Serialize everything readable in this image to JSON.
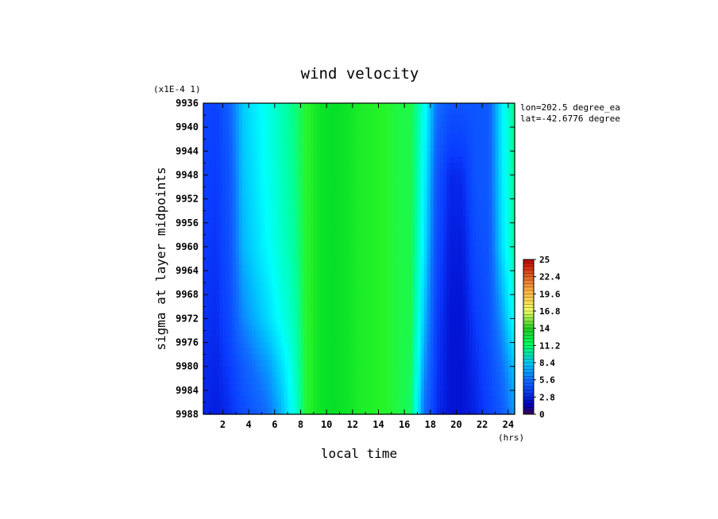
{
  "chart_data": {
    "type": "heatmap",
    "title": "wind velocity",
    "xlabel": "local time",
    "ylabel": "sigma at layer midpoints",
    "y_scale_note": "(x1E-4 1)",
    "x_unit": "(hrs)",
    "annotations": [
      "lon=202.5 degree_ea",
      "lat=-42.6776 degree"
    ],
    "x_ticks": [
      "2",
      "4",
      "6",
      "8",
      "10",
      "12",
      "14",
      "16",
      "18",
      "20",
      "22",
      "24"
    ],
    "y_ticks": [
      "9936",
      "9940",
      "9944",
      "9948",
      "9952",
      "9956",
      "9960",
      "9964",
      "9968",
      "9972",
      "9976",
      "9980",
      "9984",
      "9988"
    ],
    "xlim": [
      0.5,
      24.5
    ],
    "ylim": [
      9936,
      9988
    ],
    "colorbar": {
      "ticks": [
        "25",
        "22.4",
        "19.6",
        "16.8",
        "14",
        "11.2",
        "8.4",
        "5.6",
        "2.8",
        "0"
      ],
      "min": 0,
      "max": 25
    },
    "x": [
      0.5,
      1.5,
      2.5,
      3.5,
      4.5,
      5.5,
      6.5,
      7.5,
      8.5,
      9.5,
      10.5,
      11.5,
      12.5,
      13.5,
      14.5,
      15.5,
      16.5,
      17.5,
      18.5,
      19.5,
      20.5,
      21.5,
      22.5,
      23.5,
      24.5
    ],
    "y": [
      9936,
      9948,
      9960,
      9972,
      9980,
      9988
    ],
    "values": [
      [
        3.5,
        3.2,
        4.5,
        7.0,
        8.0,
        9.0,
        10.0,
        11.0,
        12.5,
        13.5,
        13.8,
        13.5,
        13.0,
        12.8,
        12.5,
        12.0,
        12.0,
        9.0,
        5.0,
        4.0,
        4.0,
        4.0,
        4.2,
        8.0,
        11.0
      ],
      [
        3.2,
        3.0,
        4.0,
        6.8,
        7.8,
        8.8,
        9.8,
        10.8,
        12.5,
        13.5,
        13.8,
        13.5,
        13.0,
        12.8,
        12.5,
        12.0,
        12.0,
        8.5,
        4.0,
        2.5,
        2.6,
        4.0,
        4.2,
        7.8,
        10.8
      ],
      [
        3.0,
        2.8,
        3.8,
        6.5,
        7.5,
        8.5,
        9.5,
        10.5,
        12.5,
        13.5,
        13.8,
        13.5,
        13.0,
        12.8,
        12.5,
        12.0,
        12.0,
        8.0,
        3.5,
        2.2,
        2.2,
        3.6,
        4.0,
        7.5,
        10.5
      ],
      [
        2.8,
        2.6,
        3.5,
        5.5,
        6.5,
        7.5,
        8.8,
        10.0,
        12.5,
        13.5,
        13.8,
        13.5,
        13.0,
        12.8,
        12.5,
        12.0,
        12.0,
        7.0,
        3.0,
        2.0,
        2.0,
        3.0,
        3.8,
        6.0,
        9.0
      ],
      [
        2.6,
        2.4,
        3.0,
        4.2,
        5.2,
        6.0,
        7.5,
        9.5,
        12.5,
        13.5,
        13.8,
        13.5,
        13.0,
        12.8,
        12.5,
        12.0,
        11.8,
        6.0,
        2.8,
        2.0,
        2.0,
        2.6,
        3.5,
        5.0,
        7.0
      ],
      [
        2.5,
        2.2,
        2.6,
        3.5,
        4.2,
        5.0,
        6.5,
        9.0,
        12.5,
        13.5,
        13.8,
        13.5,
        13.0,
        12.8,
        12.5,
        12.0,
        11.5,
        5.0,
        2.6,
        2.0,
        2.0,
        2.4,
        3.2,
        4.2,
        6.0
      ]
    ]
  }
}
